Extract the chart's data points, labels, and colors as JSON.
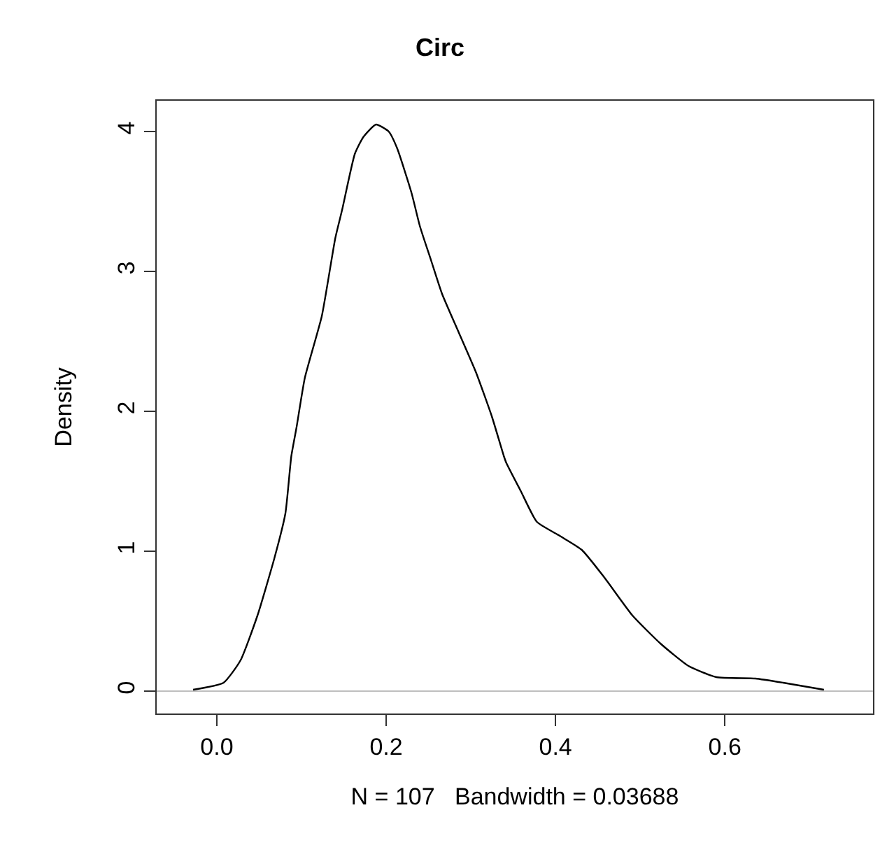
{
  "chart_data": {
    "type": "line",
    "title": "Circ",
    "xlabel": "N = 107   Bandwidth = 0.03688",
    "ylabel": "Density",
    "x": [
      -0.028,
      0.008,
      0.028,
      0.048,
      0.068,
      0.081,
      0.088,
      0.094,
      0.104,
      0.124,
      0.14,
      0.148,
      0.163,
      0.173,
      0.188,
      0.203,
      0.213,
      0.23,
      0.24,
      0.253,
      0.266,
      0.286,
      0.306,
      0.325,
      0.339,
      0.342,
      0.359,
      0.378,
      0.405,
      0.431,
      0.458,
      0.491,
      0.524,
      0.557,
      0.59,
      0.636,
      0.669,
      0.717
    ],
    "series": [
      {
        "color": "#000000",
        "values": [
          0.01,
          0.06,
          0.22,
          0.54,
          0.95,
          1.27,
          1.68,
          1.88,
          2.24,
          2.68,
          3.24,
          3.44,
          3.84,
          3.96,
          4.05,
          4.0,
          3.88,
          3.56,
          3.32,
          3.08,
          2.84,
          2.56,
          2.28,
          1.96,
          1.68,
          1.63,
          1.43,
          1.21,
          1.11,
          1.01,
          0.81,
          0.54,
          0.34,
          0.18,
          0.1,
          0.09,
          0.06,
          0.01
        ]
      }
    ],
    "xlim": [
      -0.071,
      0.775
    ],
    "ylim": [
      -0.16,
      4.22
    ],
    "xticks": [
      {
        "value": 0,
        "label": "0.0"
      },
      0.2,
      0.4,
      0.6
    ],
    "yticks": [
      0,
      1,
      2,
      3,
      4
    ],
    "ref_lines": [
      {
        "axis": "y",
        "value": 0,
        "label": null,
        "color": "#bebebe"
      }
    ],
    "grid": false,
    "marker": "none",
    "line_style": "solid"
  }
}
